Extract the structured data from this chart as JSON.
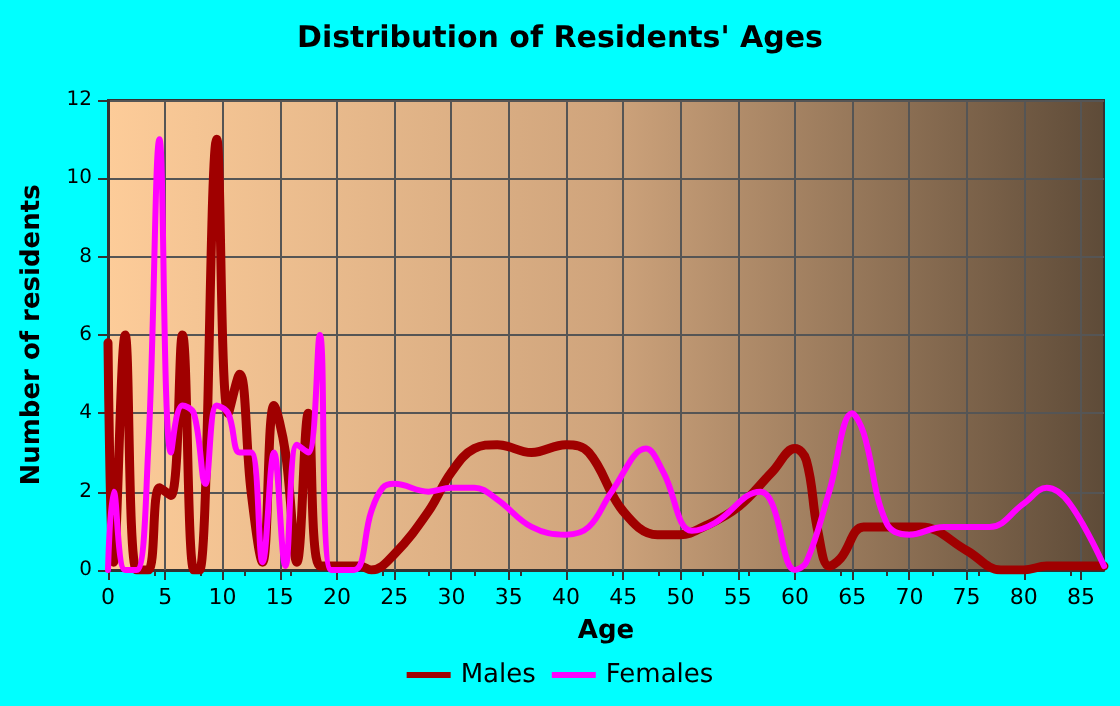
{
  "chart_data": {
    "type": "line",
    "title": "Distribution of Residents' Ages",
    "xlabel": "Age",
    "ylabel": "Number of residents",
    "xlim": [
      0,
      87
    ],
    "xticks": [
      0,
      5,
      10,
      15,
      20,
      25,
      30,
      35,
      40,
      45,
      50,
      55,
      60,
      65,
      70,
      75,
      80,
      85
    ],
    "ylim": [
      0,
      12
    ],
    "yticks": [
      0,
      2,
      4,
      6,
      8,
      10,
      12
    ],
    "grid": true,
    "legend": "bottom",
    "marker": "none",
    "line_style": "solid",
    "series": [
      {
        "name": "Males",
        "color": "#a00000",
        "x": [
          0,
          0.5,
          1.5,
          2.5,
          3.5,
          4.5,
          5.5,
          6.5,
          7.5,
          8,
          9.5,
          10.5,
          11.5,
          12.5,
          13.5,
          14.5,
          15.5,
          16.5,
          17.5,
          18.5,
          20,
          22,
          23,
          25,
          28,
          30,
          32,
          34,
          37,
          40,
          42,
          45,
          48,
          50,
          52,
          55,
          58,
          60,
          61,
          62,
          63,
          64,
          66,
          68,
          71,
          75,
          78,
          80,
          82,
          87
        ],
        "values": [
          5.8,
          0.2,
          6,
          0,
          0,
          2.1,
          1.9,
          6,
          0,
          0,
          11,
          4,
          5,
          2,
          0.2,
          4.2,
          3,
          0.2,
          4,
          0.1,
          0.1,
          0.1,
          0,
          0.4,
          1.5,
          2.5,
          3.1,
          3.2,
          3,
          3.2,
          3,
          1.5,
          0.9,
          0.9,
          1.1,
          1.6,
          2.5,
          3.1,
          2.8,
          1,
          0.1,
          0.3,
          1.1,
          1.1,
          1.1,
          0.5,
          0,
          0,
          0.1,
          0.1
        ]
      },
      {
        "name": "Females",
        "color": "#ff00ff",
        "x": [
          0,
          0.5,
          1.5,
          2.5,
          3.5,
          4.5,
          5.5,
          6.5,
          7.5,
          8.5,
          9.5,
          10.5,
          11.5,
          12.5,
          13.5,
          14.5,
          15.5,
          16.5,
          17.5,
          18.5,
          19.5,
          21.5,
          23,
          24,
          25,
          28,
          30,
          32,
          34,
          37,
          40,
          42,
          44,
          47,
          48.5,
          51,
          53,
          57,
          58,
          60,
          61,
          63,
          65,
          66,
          68,
          70,
          73,
          77,
          80,
          82,
          84,
          87
        ],
        "values": [
          0,
          2,
          0,
          0,
          3,
          11,
          3,
          4.2,
          4,
          2.2,
          4.2,
          4,
          3,
          3,
          0.2,
          3,
          0.1,
          3.2,
          3,
          6,
          0,
          0,
          1.5,
          2.1,
          2.2,
          2,
          2.1,
          2.1,
          1.8,
          1.1,
          0.9,
          1.1,
          2,
          3.1,
          2.5,
          1,
          1.2,
          2,
          1.7,
          0,
          0.2,
          2,
          4,
          3.5,
          1.2,
          0.9,
          1.1,
          1.1,
          1.7,
          2.1,
          1.7,
          0.1
        ]
      }
    ]
  }
}
